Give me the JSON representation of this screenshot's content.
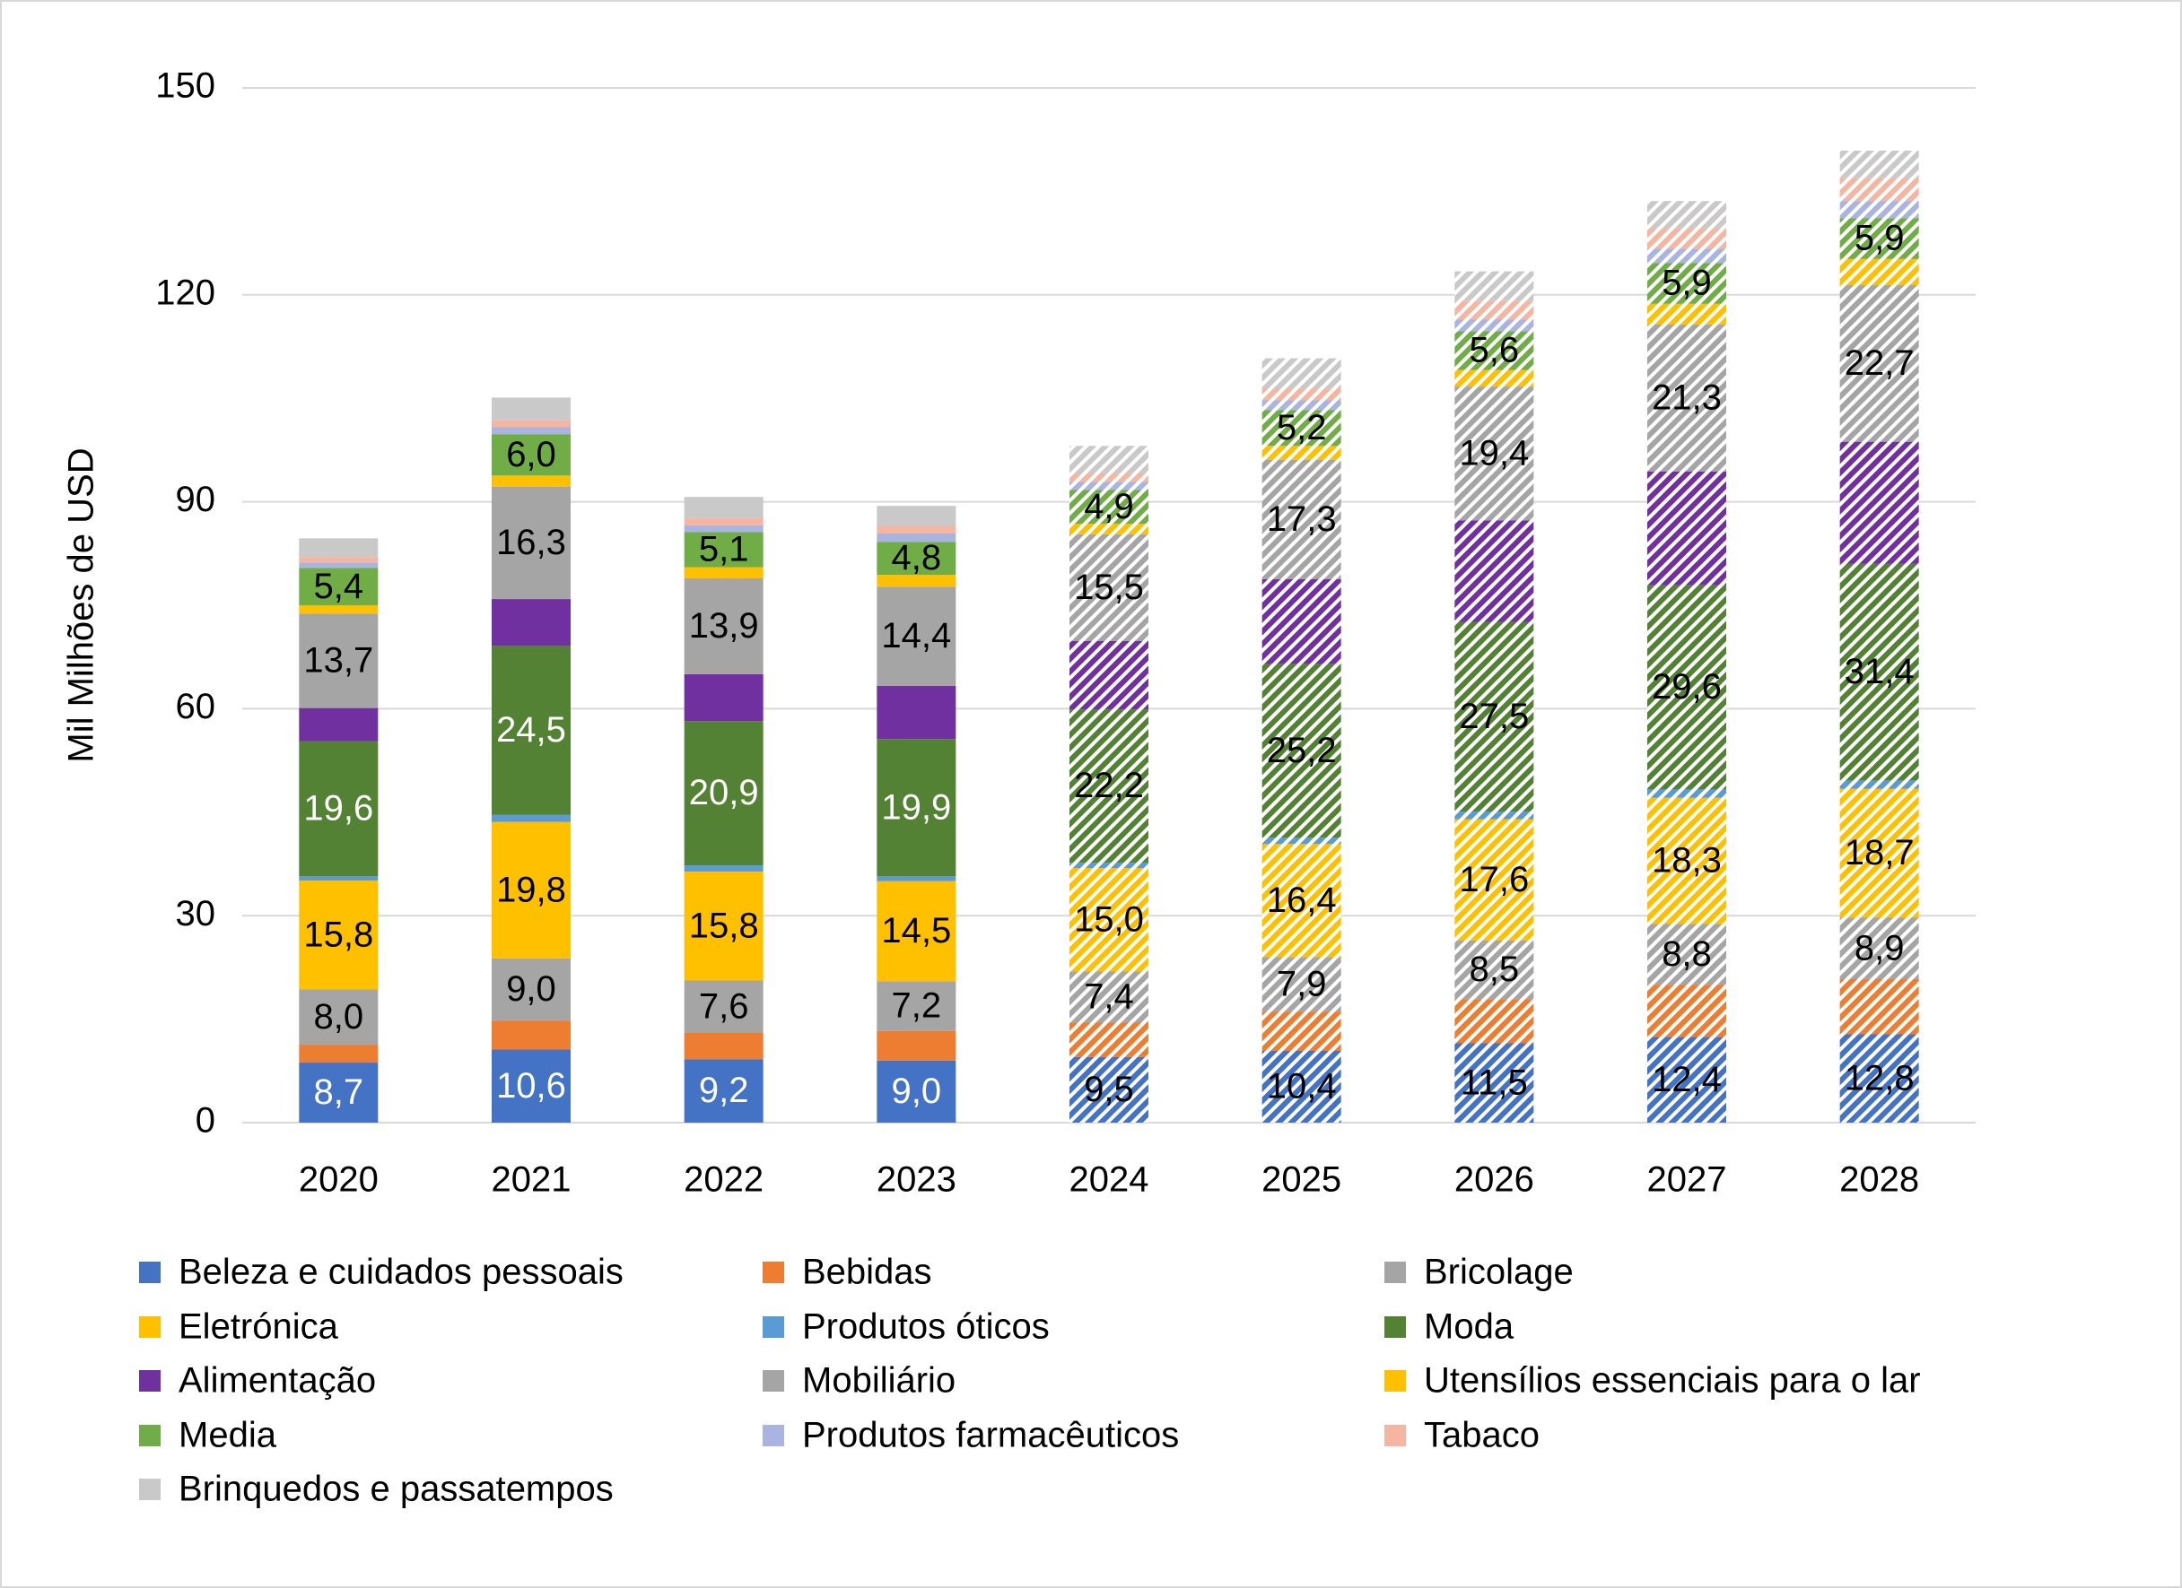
{
  "chart_data": {
    "type": "stacked_bar",
    "y_axis_label": "Mil Milhões de USD",
    "categories": [
      "2020",
      "2021",
      "2022",
      "2023",
      "2024",
      "2025",
      "2026",
      "2027",
      "2028"
    ],
    "hatched": [
      false,
      false,
      false,
      false,
      true,
      true,
      true,
      true,
      true
    ],
    "ylim": [
      0,
      150
    ],
    "yticks": [
      0,
      30,
      60,
      90,
      120,
      150
    ],
    "grid": true,
    "series": [
      {
        "name": "Beleza e cuidados pessoais",
        "color": "#4472c4",
        "values": [
          8.7,
          10.6,
          9.2,
          9.0,
          9.5,
          10.4,
          11.5,
          12.4,
          12.8
        ],
        "value_labels": [
          "8,7",
          "10,6",
          "9,2",
          "9,0",
          "9,5",
          "10,4",
          "11,5",
          "12,4",
          "12,8"
        ]
      },
      {
        "name": "Bebidas",
        "color": "#ed7d31",
        "values": [
          2.6,
          4.2,
          3.8,
          4.3,
          5.0,
          5.7,
          6.4,
          7.6,
          8.0
        ]
      },
      {
        "name": "Bricolage",
        "color": "#a5a5a5",
        "values": [
          8.0,
          9.0,
          7.6,
          7.2,
          7.4,
          7.9,
          8.5,
          8.8,
          8.9
        ],
        "value_labels": [
          "8,0",
          "9,0",
          "7,6",
          "7,2",
          "7,4",
          "7,9",
          "8,5",
          "8,8",
          "8,9"
        ]
      },
      {
        "name": "Eletrónica",
        "color": "#ffc000",
        "values": [
          15.8,
          19.8,
          15.8,
          14.5,
          15.0,
          16.4,
          17.6,
          18.3,
          18.7
        ],
        "value_labels": [
          "15,8",
          "19,8",
          "15,8",
          "14,5",
          "15,0",
          "16,4",
          "17,6",
          "18,3",
          "18,7"
        ]
      },
      {
        "name": "Produtos óticos",
        "color": "#5b9bd5",
        "values": [
          0.6,
          1.0,
          0.9,
          0.7,
          0.8,
          0.9,
          1.1,
          1.2,
          1.2
        ]
      },
      {
        "name": "Moda",
        "color": "#548235",
        "values": [
          19.6,
          24.5,
          20.9,
          19.9,
          22.2,
          25.2,
          27.5,
          29.6,
          31.4
        ],
        "value_labels": [
          "19,6",
          "24,5",
          "20,9",
          "19,9",
          "22,2",
          "25,2",
          "27,5",
          "29,6",
          "31,4"
        ]
      },
      {
        "name": "Alimentação",
        "color": "#7030a0",
        "values": [
          4.8,
          6.8,
          6.8,
          7.7,
          9.9,
          12.3,
          14.7,
          16.5,
          17.7
        ]
      },
      {
        "name": "Mobiliário",
        "color": "#a5a5a5",
        "values": [
          13.7,
          16.3,
          13.9,
          14.4,
          15.5,
          17.3,
          19.4,
          21.3,
          22.7
        ],
        "value_labels": [
          "13,7",
          "16,3",
          "13,9",
          "14,4",
          "15,5",
          "17,3",
          "19,4",
          "21,3",
          "22,7"
        ]
      },
      {
        "name": "Utensílios essenciais para o lar",
        "color": "#ffc000",
        "values": [
          1.2,
          1.6,
          1.6,
          1.7,
          1.5,
          2.0,
          2.4,
          3.0,
          3.8
        ]
      },
      {
        "name": "Media",
        "color": "#70ad47",
        "values": [
          5.4,
          6.0,
          5.1,
          4.8,
          4.9,
          5.2,
          5.6,
          5.9,
          5.9
        ],
        "value_labels": [
          "5,4",
          "6,0",
          "5,1",
          "4,8",
          "4,9",
          "5,2",
          "5,6",
          "5,9",
          "5,9"
        ]
      },
      {
        "name": "Produtos farmacêuticos",
        "color": "#a9b4e0",
        "values": [
          0.8,
          1.0,
          1.0,
          1.2,
          1.2,
          1.4,
          1.7,
          2.1,
          2.5
        ]
      },
      {
        "name": "Tabaco",
        "color": "#f4b6a0",
        "values": [
          0.8,
          1.0,
          1.0,
          1.1,
          1.2,
          1.7,
          2.7,
          2.9,
          3.3
        ]
      },
      {
        "name": "Brinquedos e passatempos",
        "color": "#c9c9c9",
        "values": [
          2.7,
          3.3,
          3.1,
          2.9,
          4.0,
          4.4,
          4.3,
          4.0,
          4.0
        ]
      }
    ]
  }
}
